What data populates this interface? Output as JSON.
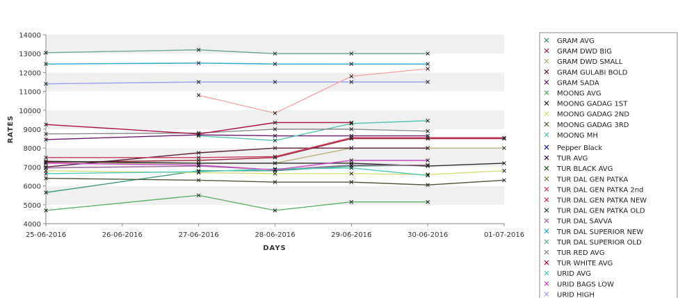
{
  "chart_data": {
    "type": "line",
    "xlabel": "DAYS",
    "ylabel": "RATES",
    "ylim": [
      4000,
      14000
    ],
    "yticks": [
      4000,
      5000,
      6000,
      7000,
      8000,
      9000,
      10000,
      11000,
      12000,
      13000,
      14000
    ],
    "x": [
      "25-06-2016",
      "26-06-2016",
      "27-06-2016",
      "28-06-2016",
      "29-06-2016",
      "30-06-2016",
      "01-07-2016"
    ],
    "grid": "horizontal alternating bands",
    "legend_position": "right",
    "series": [
      {
        "name": "GRAM AVG",
        "color": "#3c9a7c",
        "values": [
          5650,
          null,
          6800,
          6800,
          7050,
          7100,
          null
        ]
      },
      {
        "name": "GRAM DWD BIG",
        "color": "#9c2a3c",
        "values": [
          7250,
          null,
          7350,
          7500,
          8500,
          8500,
          8500
        ]
      },
      {
        "name": "GRAM DWD SMALL",
        "color": "#b8b078",
        "values": [
          7200,
          null,
          7200,
          7200,
          8000,
          8000,
          8000
        ]
      },
      {
        "name": "GRAM GULABI BOLD",
        "color": "#5c1c3c",
        "values": [
          7000,
          null,
          7750,
          8000,
          8000,
          8000,
          null
        ]
      },
      {
        "name": "GRAM SADA",
        "color": "#6a1a6a",
        "values": [
          8450,
          null,
          8700,
          8650,
          8650,
          8650,
          null
        ]
      },
      {
        "name": "MOONG AVG",
        "color": "#5fae6a",
        "values": [
          4700,
          null,
          5500,
          4700,
          5150,
          5150,
          null
        ]
      },
      {
        "name": "MOONG GADAG 1ST",
        "color": "#2a2a2a",
        "values": [
          7300,
          null,
          7200,
          7200,
          7200,
          7050,
          7200
        ]
      },
      {
        "name": "MOONG GADAG 2ND",
        "color": "#d8dc7c",
        "values": [
          6800,
          null,
          6700,
          6650,
          6650,
          6600,
          6800
        ]
      },
      {
        "name": "MOONG GADAG 3RD",
        "color": "#505a3a",
        "values": [
          6400,
          null,
          6300,
          6200,
          6200,
          6050,
          6300
        ]
      },
      {
        "name": "MOONG MH",
        "color": "#56c4b4",
        "values": [
          null,
          null,
          8650,
          8400,
          9300,
          9450,
          null
        ]
      },
      {
        "name": "Pepper Black",
        "color": "#2a2a8a",
        "values": [
          null,
          null,
          null,
          null,
          null,
          null,
          null
        ]
      },
      {
        "name": "TUR AVG",
        "color": "#3a0a4a",
        "values": [
          null,
          null,
          null,
          null,
          null,
          null,
          null
        ]
      },
      {
        "name": "TUR BLACK AVG",
        "color": "#1e5a1e",
        "values": [
          null,
          null,
          null,
          null,
          null,
          null,
          null
        ]
      },
      {
        "name": "TUR DAL GEN PATKA",
        "color": "#6a8a3a",
        "values": [
          null,
          null,
          null,
          null,
          null,
          null,
          null
        ]
      },
      {
        "name": "TUR DAL GEN PATKA 2nd",
        "color": "#c84a6a",
        "values": [
          null,
          null,
          null,
          null,
          null,
          null,
          null
        ]
      },
      {
        "name": "TUR DAL GEN PATKA NEW",
        "color": "#c83a5a",
        "values": [
          7500,
          null,
          7500,
          7550,
          8550,
          8550,
          8550
        ]
      },
      {
        "name": "TUR DAL GEN PATKA OLD",
        "color": "#2a4a3a",
        "values": [
          null,
          null,
          null,
          null,
          null,
          null,
          null
        ]
      },
      {
        "name": "TUR DAL SAVVA",
        "color": "#9a6a9a",
        "values": [
          6950,
          null,
          7050,
          6850,
          7100,
          7100,
          null
        ]
      },
      {
        "name": "TUR DAL SUPERIOR NEW",
        "color": "#2aa8c8",
        "values": [
          12450,
          null,
          12500,
          12450,
          12450,
          12450,
          null
        ]
      },
      {
        "name": "TUR DAL SUPERIOR OLD",
        "color": "#6aa88a",
        "values": [
          13050,
          null,
          13200,
          13000,
          13000,
          13000,
          null
        ]
      },
      {
        "name": "TUR RED AVG",
        "color": "#8a8a8a",
        "values": [
          8750,
          null,
          8800,
          9000,
          9000,
          8900,
          null
        ]
      },
      {
        "name": "TUR WHITE AVG",
        "color": "#a8103a",
        "values": [
          9250,
          null,
          8750,
          9350,
          9350,
          null,
          null
        ]
      },
      {
        "name": "URID AVG",
        "color": "#4ac8b8",
        "values": [
          6650,
          null,
          6750,
          6900,
          6950,
          6550,
          null
        ]
      },
      {
        "name": "URID BAGS LOW",
        "color": "#c84ac8",
        "values": [
          7200,
          null,
          7100,
          6850,
          7350,
          7350,
          null
        ]
      },
      {
        "name": "URID HIGH",
        "color": "#9aa0f0",
        "values": [
          11400,
          null,
          11500,
          11500,
          11500,
          11500,
          null
        ]
      },
      {
        "name": "",
        "color": "#f0a8a8",
        "values": [
          null,
          null,
          10800,
          9850,
          11800,
          12200,
          null
        ]
      }
    ]
  }
}
